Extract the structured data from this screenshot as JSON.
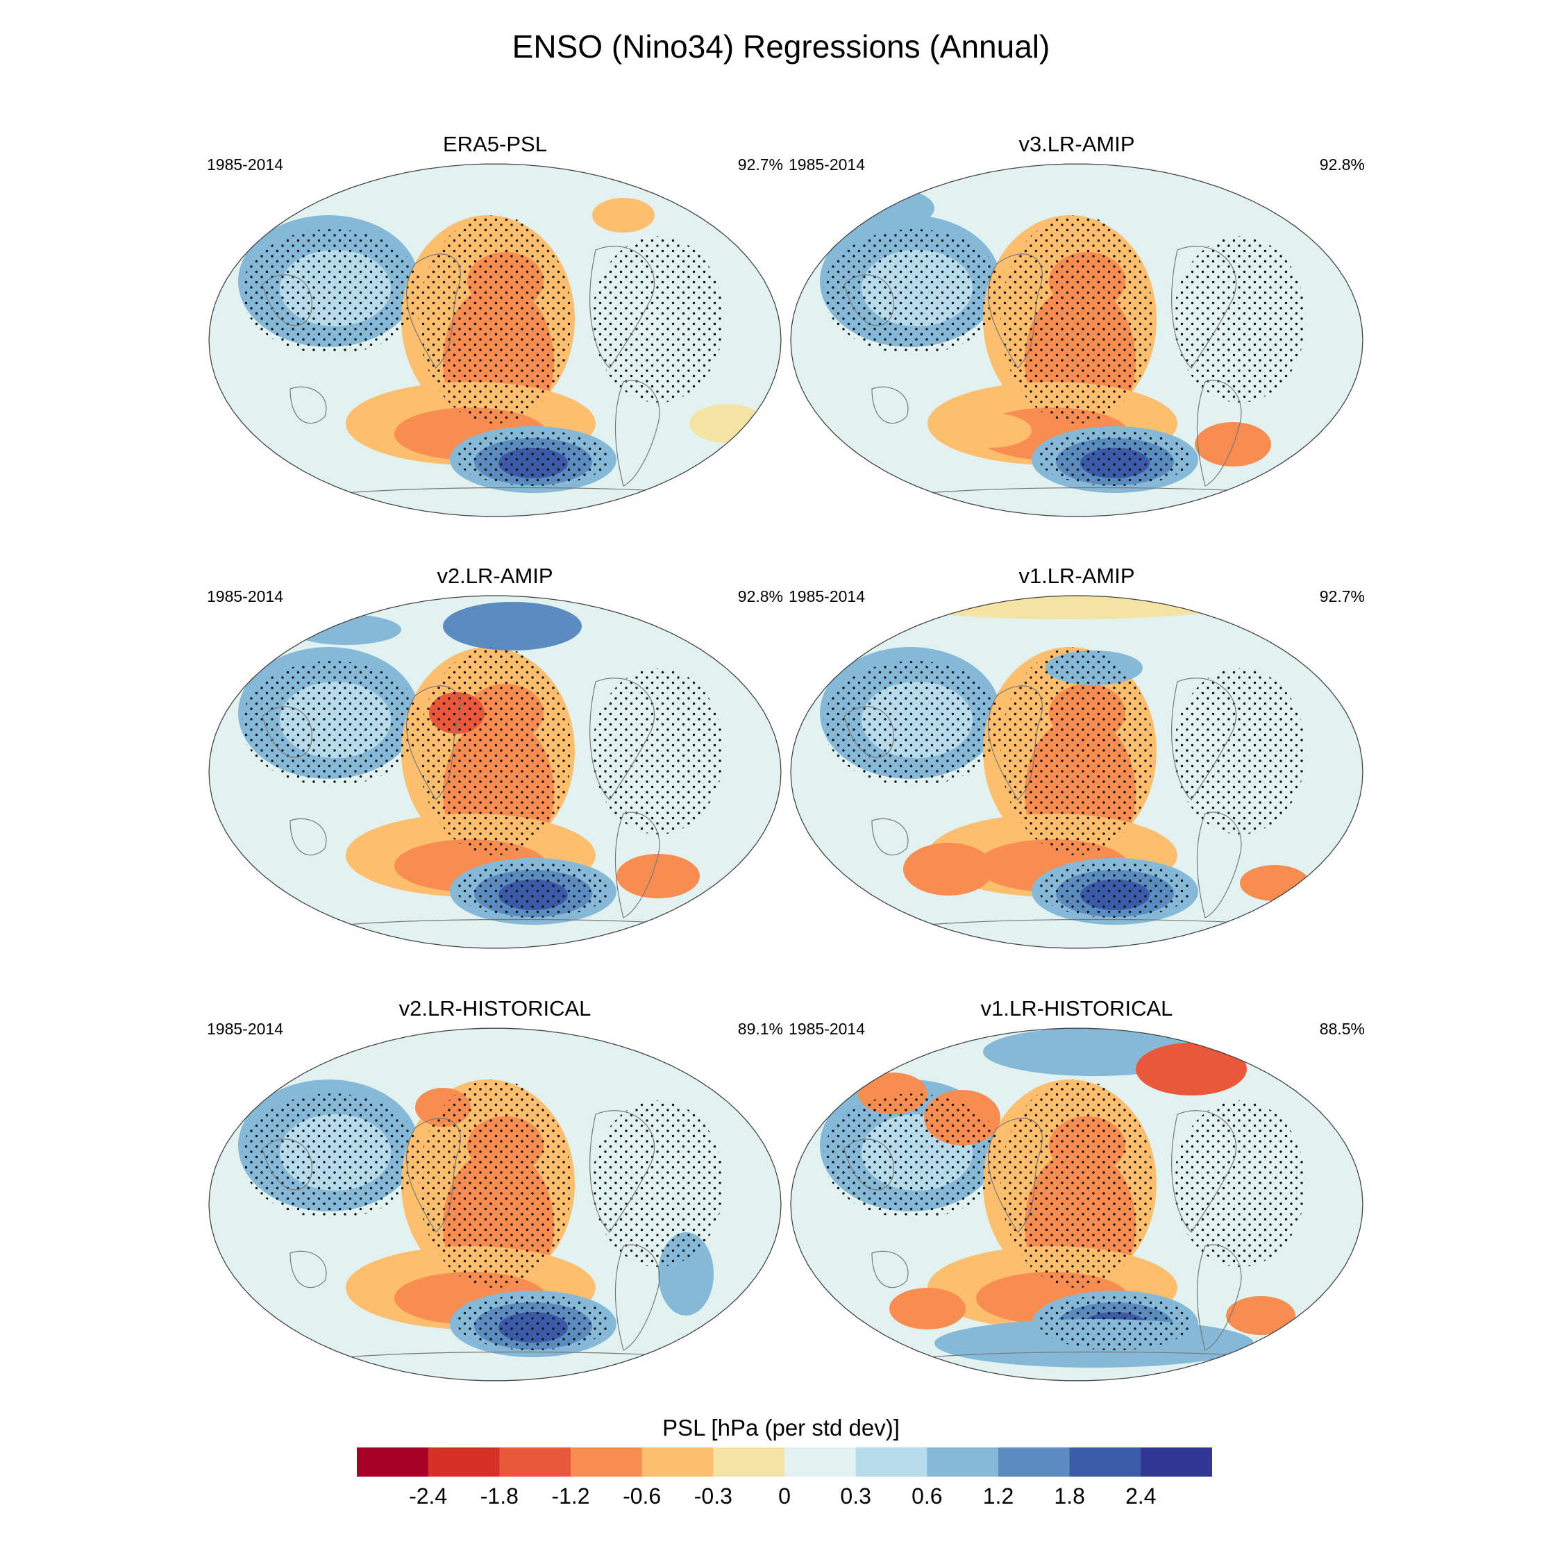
{
  "title": "ENSO (Nino34) Regressions (Annual)",
  "panels": [
    {
      "title": "ERA5-PSL",
      "period": "1985-2014",
      "pattern_correlation": "92.7%"
    },
    {
      "title": "v3.LR-AMIP",
      "period": "1985-2014",
      "pattern_correlation": "92.8%"
    },
    {
      "title": "v2.LR-AMIP",
      "period": "1985-2014",
      "pattern_correlation": "92.8%"
    },
    {
      "title": "v1.LR-AMIP",
      "period": "1985-2014",
      "pattern_correlation": "92.7%"
    },
    {
      "title": "v2.LR-HISTORICAL",
      "period": "1985-2014",
      "pattern_correlation": "89.1%"
    },
    {
      "title": "v1.LR-HISTORICAL",
      "period": "1985-2014",
      "pattern_correlation": "88.5%"
    }
  ],
  "colorbar": {
    "title": "PSL [hPa (per std dev)]",
    "ticks": [
      "-2.4",
      "-1.8",
      "-1.2",
      "-0.6",
      "-0.3",
      "0",
      "0.3",
      "0.6",
      "1.2",
      "1.8",
      "2.4"
    ],
    "colors": [
      "#a50026",
      "#d73027",
      "#e9583a",
      "#f88d52",
      "#fdbe6e",
      "#f5e3a3",
      "#e2f2f0",
      "#b6dcec",
      "#86b8d8",
      "#5a8cc0",
      "#3b5aa7",
      "#313695"
    ]
  },
  "chart_data": {
    "type": "heatmap",
    "title": "ENSO (Nino34) Regressions (Annual)",
    "variable": "PSL [hPa (per std dev)]",
    "levels": [
      -2.4,
      -1.8,
      -1.2,
      -0.6,
      -0.3,
      0,
      0.3,
      0.6,
      1.2,
      1.8,
      2.4
    ],
    "panels": [
      {
        "name": "ERA5-PSL",
        "period": "1985-2014",
        "pattern_correlation": 92.7
      },
      {
        "name": "v3.LR-AMIP",
        "period": "1985-2014",
        "pattern_correlation": 92.8
      },
      {
        "name": "v2.LR-AMIP",
        "period": "1985-2014",
        "pattern_correlation": 92.8
      },
      {
        "name": "v1.LR-AMIP",
        "period": "1985-2014",
        "pattern_correlation": 92.7
      },
      {
        "name": "v2.LR-HISTORICAL",
        "period": "1985-2014",
        "pattern_correlation": 89.1
      },
      {
        "name": "v1.LR-HISTORICAL",
        "period": "1985-2014",
        "pattern_correlation": 88.5
      }
    ]
  }
}
